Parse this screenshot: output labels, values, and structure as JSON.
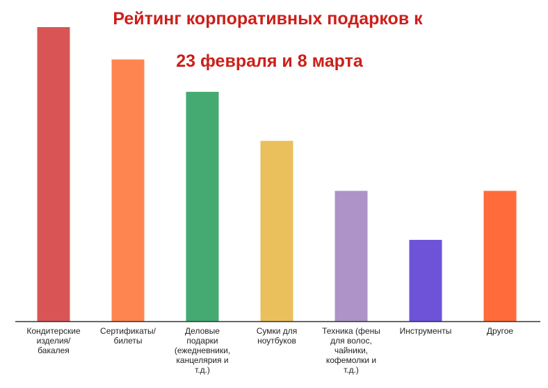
{
  "chart_data": {
    "type": "bar",
    "title_lines": [
      "Рейтинг корпоративных подарков к",
      "23 февраля и 8 марта"
    ],
    "categories": [
      [
        "Кондитерские",
        "изделия/",
        "бакалея"
      ],
      [
        "Сертификаты/",
        "билеты"
      ],
      [
        "Деловые",
        "подарки",
        "(ежедневники,",
        "канцелярия и",
        "т.д.)"
      ],
      [
        "Сумки для",
        "ноутбуков"
      ],
      [
        "Техника (фены",
        "для волос,",
        "чайники,",
        "кофемолки и",
        "т.д.)"
      ],
      [
        "Инструменты"
      ],
      [
        "Другое"
      ]
    ],
    "values": [
      30,
      26.7,
      23.4,
      18.4,
      13.3,
      8.3,
      13.3
    ],
    "colors": [
      "#d95555",
      "#ff8550",
      "#45aa72",
      "#eac05c",
      "#ad93c8",
      "#6e52d8",
      "#ff6b3a"
    ],
    "ylim": [
      0,
      30
    ],
    "grid": false,
    "legend": "none"
  }
}
